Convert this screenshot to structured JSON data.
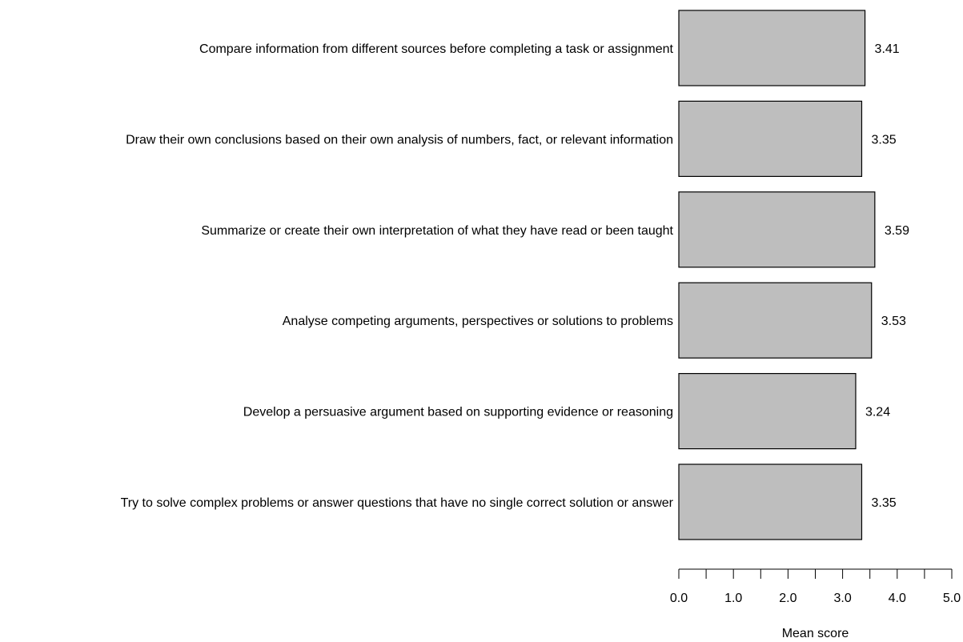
{
  "chart_data": {
    "type": "bar",
    "orientation": "horizontal",
    "title": "",
    "xlabel": "Mean score",
    "ylabel": "",
    "xlim": [
      0,
      5
    ],
    "ticks": [
      "0.0",
      "1.0",
      "2.0",
      "3.0",
      "4.0",
      "5.0"
    ],
    "categories": [
      "Compare information from different sources before completing a task or assignment",
      "Draw their own conclusions based on their own analysis of numbers, fact, or relevant information",
      "Summarize or create their own interpretation of what they have read or been taught",
      "Analyse competing arguments, perspectives or solutions to problems",
      "Develop a persuasive argument based on supporting evidence or reasoning",
      "Try to solve complex problems or answer questions that have no single correct solution or answer"
    ],
    "values": [
      3.41,
      3.35,
      3.59,
      3.53,
      3.24,
      3.35
    ],
    "value_labels": [
      "3.41",
      "3.35",
      "3.59",
      "3.53",
      "3.24",
      "3.35"
    ],
    "bar_color": "#bebebe",
    "border_color": "#000000",
    "grid": false
  }
}
